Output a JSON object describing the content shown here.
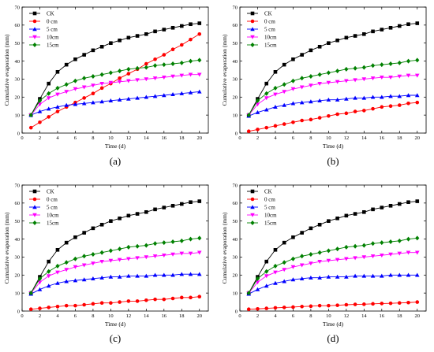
{
  "chart_data": [
    {
      "type": "line",
      "label": "(a)",
      "xlabel": "Time (d)",
      "ylabel": "Cumulative evaporation (mm)",
      "xlim": [
        0,
        21
      ],
      "ylim": [
        0,
        70
      ],
      "xticks": [
        0,
        2,
        4,
        6,
        8,
        10,
        12,
        14,
        16,
        18,
        20
      ],
      "yticks": [
        0,
        10,
        20,
        30,
        40,
        50,
        60,
        70
      ],
      "legend_position": "top-left",
      "x": [
        1,
        2,
        3,
        4,
        5,
        6,
        7,
        8,
        9,
        10,
        11,
        12,
        13,
        14,
        15,
        16,
        17,
        18,
        19,
        20
      ],
      "series": [
        {
          "name": "CK",
          "color": "#000000",
          "marker": "square",
          "values": [
            10,
            19,
            27.5,
            34,
            38,
            41,
            43.5,
            46,
            48,
            50,
            51.5,
            53,
            54,
            55,
            56.5,
            57.5,
            58.5,
            59.5,
            60.5,
            61
          ]
        },
        {
          "name": "0 cm",
          "color": "#ff0000",
          "marker": "circle",
          "values": [
            3,
            6,
            9,
            12,
            14.5,
            17,
            19.5,
            22,
            25,
            27.5,
            30.5,
            33,
            35.5,
            38.5,
            41,
            43.5,
            46.5,
            49,
            52,
            55
          ]
        },
        {
          "name": "5 cm",
          "color": "#0000ff",
          "marker": "triangle-up",
          "values": [
            10,
            12,
            13.5,
            14.5,
            15.5,
            16,
            16.5,
            17,
            17.5,
            18,
            18.5,
            19,
            19.5,
            20,
            20.5,
            21,
            21.5,
            22,
            22.5,
            23
          ]
        },
        {
          "name": "10cm",
          "color": "#ff00ff",
          "marker": "triangle-down",
          "values": [
            10,
            16,
            19.5,
            21.5,
            23,
            24.5,
            25.5,
            26.5,
            27.5,
            28,
            28.5,
            29,
            29.5,
            30,
            30.5,
            31,
            31.5,
            32,
            32.5,
            32.5
          ]
        },
        {
          "name": "15cm",
          "color": "#008000",
          "marker": "diamond",
          "values": [
            10,
            18,
            22,
            25,
            27,
            29,
            30.5,
            31.5,
            32.5,
            33.5,
            34.5,
            35.5,
            36,
            36.5,
            37.5,
            38,
            38.5,
            39,
            40,
            40.5
          ]
        }
      ]
    },
    {
      "type": "line",
      "label": "(b)",
      "xlabel": "Time (d)",
      "ylabel": "Cumulative evaporation (mm)",
      "xlim": [
        0,
        21
      ],
      "ylim": [
        0,
        70
      ],
      "xticks": [
        0,
        2,
        4,
        6,
        8,
        10,
        12,
        14,
        16,
        18,
        20
      ],
      "yticks": [
        0,
        10,
        20,
        30,
        40,
        50,
        60,
        70
      ],
      "legend_position": "top-left",
      "x": [
        1,
        2,
        3,
        4,
        5,
        6,
        7,
        8,
        9,
        10,
        11,
        12,
        13,
        14,
        15,
        16,
        17,
        18,
        19,
        20
      ],
      "series": [
        {
          "name": "CK",
          "color": "#000000",
          "marker": "square",
          "values": [
            10,
            19,
            27.5,
            34,
            38,
            41,
            43.5,
            46,
            48,
            50,
            51.5,
            53,
            54,
            55,
            56.5,
            57.5,
            58.5,
            59.5,
            60.5,
            61
          ]
        },
        {
          "name": "0 cm",
          "color": "#ff0000",
          "marker": "circle",
          "values": [
            1,
            2,
            3,
            4,
            5,
            6,
            7,
            7.5,
            8.5,
            9.5,
            10.5,
            11,
            12,
            12.5,
            13.5,
            14.5,
            15,
            15.5,
            16.5,
            17
          ]
        },
        {
          "name": "5 cm",
          "color": "#0000ff",
          "marker": "triangle-up",
          "values": [
            9.5,
            11.5,
            13,
            14.5,
            15.5,
            16.5,
            17,
            17.5,
            18,
            18.5,
            18.5,
            19,
            19.5,
            19.5,
            20,
            20,
            20.5,
            20.5,
            21,
            21
          ]
        },
        {
          "name": "10cm",
          "color": "#ff00ff",
          "marker": "triangle-down",
          "values": [
            10,
            16,
            19.5,
            21.5,
            23,
            24.5,
            25.5,
            26.5,
            27.5,
            28,
            28.5,
            29,
            29.5,
            30,
            30.5,
            31,
            31,
            31.5,
            32,
            32
          ]
        },
        {
          "name": "15cm",
          "color": "#008000",
          "marker": "diamond",
          "values": [
            10,
            18,
            22,
            25,
            27,
            29,
            30.5,
            31.5,
            32.5,
            33.5,
            34.5,
            35.5,
            36,
            36.5,
            37.5,
            38,
            38.5,
            39,
            40,
            40.5
          ]
        }
      ]
    },
    {
      "type": "line",
      "label": "(c)",
      "xlabel": "Time (d)",
      "ylabel": "Cumulative evaporation (mm)",
      "xlim": [
        0,
        21
      ],
      "ylim": [
        0,
        70
      ],
      "xticks": [
        0,
        2,
        4,
        6,
        8,
        10,
        12,
        14,
        16,
        18,
        20
      ],
      "yticks": [
        0,
        10,
        20,
        30,
        40,
        50,
        60,
        70
      ],
      "legend_position": "top-left",
      "x": [
        1,
        2,
        3,
        4,
        5,
        6,
        7,
        8,
        9,
        10,
        11,
        12,
        13,
        14,
        15,
        16,
        17,
        18,
        19,
        20
      ],
      "series": [
        {
          "name": "CK",
          "color": "#000000",
          "marker": "square",
          "values": [
            10,
            19,
            27.5,
            34,
            38,
            41,
            43.5,
            46,
            48,
            50,
            51.5,
            53,
            54,
            55,
            56.5,
            57.5,
            58.5,
            59.5,
            60.5,
            61
          ]
        },
        {
          "name": "0 cm",
          "color": "#ff0000",
          "marker": "circle",
          "values": [
            1,
            1.5,
            2,
            2.5,
            3,
            3,
            3.5,
            4,
            4.5,
            4.5,
            5,
            5.5,
            5.5,
            6,
            6.5,
            6.5,
            7,
            7.5,
            7.5,
            8
          ]
        },
        {
          "name": "5 cm",
          "color": "#0000ff",
          "marker": "triangle-up",
          "values": [
            9.5,
            12,
            14,
            15.5,
            16.5,
            17,
            17.5,
            18,
            18.5,
            19,
            19,
            19.5,
            19.5,
            19.5,
            20,
            20,
            20,
            20.5,
            20.5,
            20.5
          ]
        },
        {
          "name": "10cm",
          "color": "#ff00ff",
          "marker": "triangle-down",
          "values": [
            10,
            16,
            19.5,
            21.5,
            23,
            24.5,
            25.5,
            26.5,
            27.5,
            28,
            28.5,
            29,
            29.5,
            30,
            30.5,
            31,
            31.5,
            32,
            32,
            32.5
          ]
        },
        {
          "name": "15cm",
          "color": "#008000",
          "marker": "diamond",
          "values": [
            10,
            18,
            22,
            25,
            27,
            29,
            30.5,
            31.5,
            32.5,
            33.5,
            34.5,
            35.5,
            36,
            36.5,
            37.5,
            38,
            38.5,
            39,
            40,
            40.5
          ]
        }
      ]
    },
    {
      "type": "line",
      "label": "(d)",
      "xlabel": "Time (d)",
      "ylabel": "Cumulative evaporation (mm)",
      "xlim": [
        0,
        21
      ],
      "ylim": [
        0,
        70
      ],
      "xticks": [
        0,
        2,
        4,
        6,
        8,
        10,
        12,
        14,
        16,
        18,
        20
      ],
      "yticks": [
        0,
        10,
        20,
        30,
        40,
        50,
        60,
        70
      ],
      "legend_position": "top-left",
      "x": [
        1,
        2,
        3,
        4,
        5,
        6,
        7,
        8,
        9,
        10,
        11,
        12,
        13,
        14,
        15,
        16,
        17,
        18,
        19,
        20
      ],
      "series": [
        {
          "name": "CK",
          "color": "#000000",
          "marker": "square",
          "values": [
            10,
            19,
            27.5,
            34,
            38,
            41,
            43.5,
            46,
            48,
            50,
            51.5,
            53,
            54,
            55,
            56.5,
            57.5,
            58.5,
            59.5,
            60.5,
            61
          ]
        },
        {
          "name": "0 cm",
          "color": "#ff0000",
          "marker": "circle",
          "values": [
            1,
            1.2,
            1.5,
            1.8,
            2,
            2.2,
            2.5,
            2.7,
            3,
            3,
            3.2,
            3.5,
            3.7,
            3.8,
            4,
            4.2,
            4.3,
            4.5,
            4.7,
            5
          ]
        },
        {
          "name": "5 cm",
          "color": "#0000ff",
          "marker": "triangle-up",
          "values": [
            9.5,
            12,
            14,
            15.5,
            16.5,
            17.5,
            18,
            18.5,
            18.5,
            19,
            19,
            19,
            19.5,
            19.5,
            19.5,
            19.5,
            20,
            20,
            20,
            20
          ]
        },
        {
          "name": "10cm",
          "color": "#ff00ff",
          "marker": "triangle-down",
          "values": [
            10,
            16,
            19.5,
            21.5,
            23,
            24.5,
            25.5,
            26.5,
            27.5,
            28,
            28.5,
            29,
            29.5,
            30,
            30.5,
            31,
            31.5,
            32,
            32.5,
            32.5
          ]
        },
        {
          "name": "15cm",
          "color": "#008000",
          "marker": "diamond",
          "values": [
            10,
            18,
            22,
            25,
            27,
            29,
            30.5,
            31.5,
            32.5,
            33.5,
            34.5,
            35.5,
            36,
            36.5,
            37.5,
            38,
            38.5,
            39,
            40,
            40.5
          ]
        }
      ]
    }
  ]
}
